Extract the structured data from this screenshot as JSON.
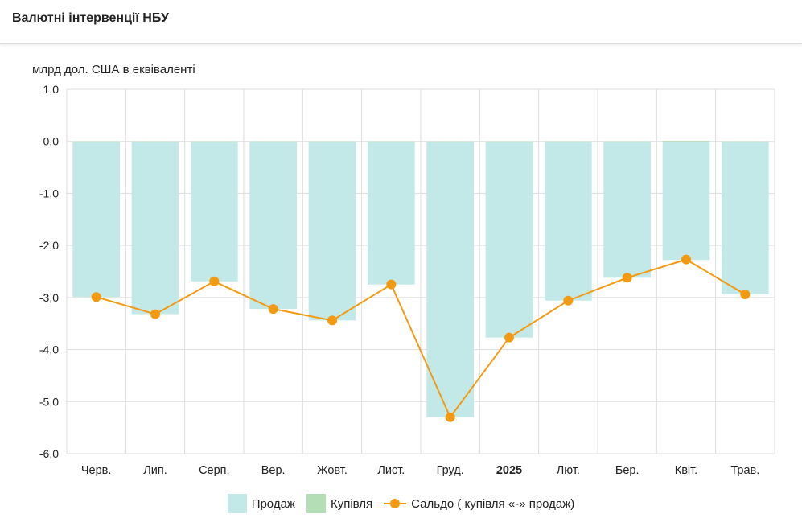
{
  "header": {
    "title": "Валютні інтервенції НБУ"
  },
  "colors": {
    "sales": "#c2e8e8",
    "purchases": "#b4dfb6",
    "balance": "#f39a11",
    "grid": "#dddddd"
  },
  "chart_data": {
    "type": "bar+line",
    "title": "Валютні інтервенції НБУ",
    "ylabel": "млрд дол. США в еквіваленті",
    "ylim": [
      -6,
      1
    ],
    "yticks": [
      "1,0",
      "0,0",
      "-1,0",
      "-2,0",
      "-3,0",
      "-4,0",
      "-5,0",
      "-6,0"
    ],
    "ytick_values": [
      1,
      0,
      -1,
      -2,
      -3,
      -4,
      -5,
      -6
    ],
    "categories": [
      "Черв.",
      "Лип.",
      "Серп.",
      "Вер.",
      "Жовт.",
      "Лист.",
      "Груд.",
      "2025",
      "Лют.",
      "Бер.",
      "Квіт.",
      "Трав."
    ],
    "bold_categories": [
      "2025"
    ],
    "series": [
      {
        "name": "Продаж",
        "kind": "bar",
        "values": [
          -2.99,
          -3.32,
          -2.69,
          -3.22,
          -3.44,
          -2.75,
          -5.3,
          -3.77,
          -3.06,
          -2.62,
          -2.28,
          -2.94
        ]
      },
      {
        "name": "Купівля",
        "kind": "bar",
        "values": [
          0.0,
          0.0,
          0.0,
          0.0,
          0.0,
          0.0,
          0.0,
          0.0,
          0.0,
          0.0,
          0.01,
          0.0
        ]
      },
      {
        "name": "Сальдо ( купівля «-» продаж)",
        "kind": "line",
        "values": [
          -2.99,
          -3.32,
          -2.69,
          -3.22,
          -3.44,
          -2.75,
          -5.3,
          -3.77,
          -3.06,
          -2.62,
          -2.27,
          -2.94
        ]
      }
    ],
    "grid": true,
    "legend_position": "bottom-center"
  }
}
